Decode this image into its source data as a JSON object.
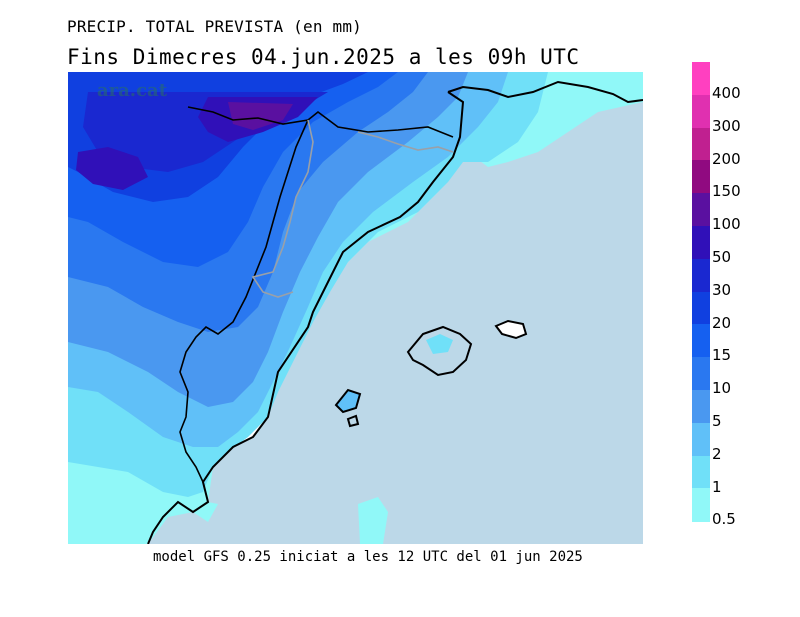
{
  "header": {
    "title_line1": "PRECIP. TOTAL PREVISTA (en mm)",
    "title_line2": "Fins Dimecres  04.jun.2025  a les 09h  UTC"
  },
  "footer": {
    "model_info": "model GFS 0.25 iniciat a les 12 UTC del 01 jun 2025"
  },
  "map": {
    "watermark": "ara.cat",
    "sea_color": "#bcd8e8",
    "land_dry_color": "#ffffff"
  },
  "legend": {
    "classes": [
      {
        "label": "400",
        "color": "#ff40c0"
      },
      {
        "label": "300",
        "color": "#e030b0"
      },
      {
        "label": "200",
        "color": "#c02090"
      },
      {
        "label": "150",
        "color": "#900a80"
      },
      {
        "label": "100",
        "color": "#5a10a0"
      },
      {
        "label": "50",
        "color": "#3010b8"
      },
      {
        "label": "30",
        "color": "#1a28d0"
      },
      {
        "label": "20",
        "color": "#1040e0"
      },
      {
        "label": "15",
        "color": "#1560f0"
      },
      {
        "label": "10",
        "color": "#2a78f0"
      },
      {
        "label": "5",
        "color": "#4a98f0"
      },
      {
        "label": "2",
        "color": "#60c0f8"
      },
      {
        "label": "1",
        "color": "#70e0f8"
      },
      {
        "label": "0.5",
        "color": "#90f8f8"
      }
    ]
  }
}
